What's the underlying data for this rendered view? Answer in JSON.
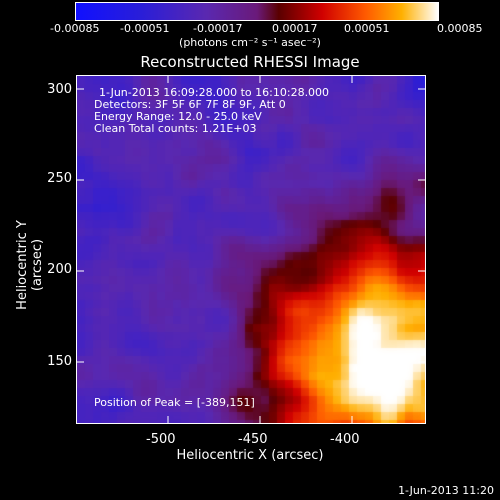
{
  "colorbar": {
    "ticks": [
      "-0.00085",
      "-0.00051",
      "-0.00017",
      "0.00017",
      "0.00051",
      "0.00085"
    ],
    "units": "(photons cm⁻² s⁻¹ asec⁻²)"
  },
  "title": "Reconstructed RHESSI Image",
  "info": {
    "line1": "1-Jun-2013 16:09:28.000 to 16:10:28.000",
    "line2": "Detectors: 3F 5F 6F 7F 8F 9F, Att 0",
    "line3": "Energy Range: 12.0 - 25.0 keV",
    "line4": "Clean     Total counts: 1.21E+03",
    "peak": "Position of Peak = [-389,151]"
  },
  "axes": {
    "xlabel": "Heliocentric X (arcsec)",
    "ylabel": "Heliocentric Y (arcsec)",
    "xticks": [
      "-500",
      "-450",
      "-400"
    ],
    "yticks": [
      "300",
      "250",
      "200",
      "150"
    ]
  },
  "footer": "1-Jun-2013 11:20"
}
